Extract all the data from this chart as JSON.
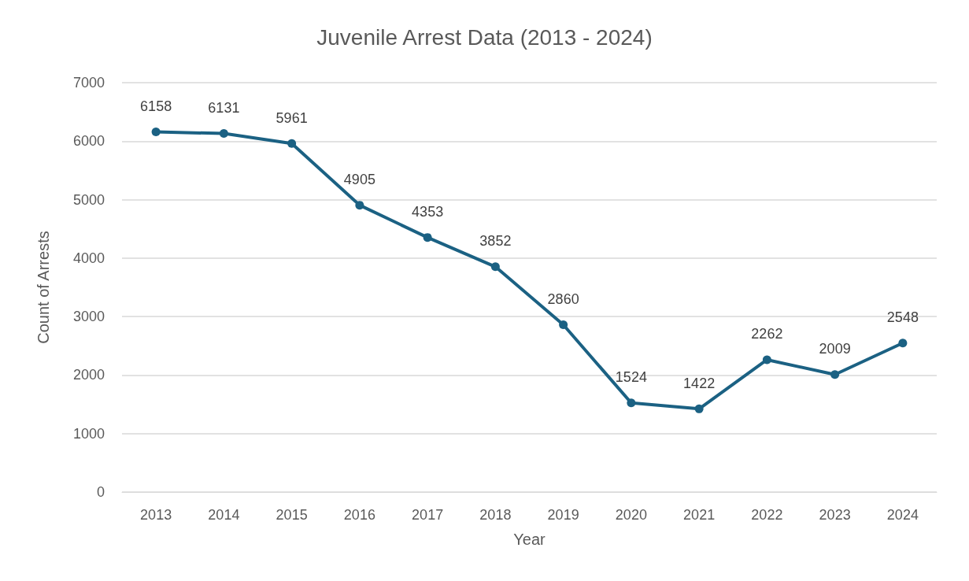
{
  "chart_data": {
    "type": "line",
    "title": "Juvenile Arrest Data (2013 - 2024)",
    "xlabel": "Year",
    "ylabel": "Count of Arrests",
    "categories": [
      "2013",
      "2014",
      "2015",
      "2016",
      "2017",
      "2018",
      "2019",
      "2020",
      "2021",
      "2022",
      "2023",
      "2024"
    ],
    "values": [
      6158,
      6131,
      5961,
      4905,
      4353,
      3852,
      2860,
      1524,
      1422,
      2262,
      2009,
      2548
    ],
    "color": "#1b6183",
    "ylim": [
      0,
      7000
    ],
    "yticks": [
      0,
      1000,
      2000,
      3000,
      4000,
      5000,
      6000,
      7000
    ],
    "grid": "y",
    "marker": "circle",
    "line_style": "solid",
    "data_labels": true
  }
}
